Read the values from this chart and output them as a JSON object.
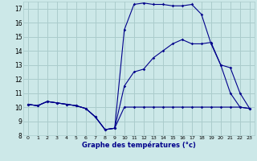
{
  "xlabel": "Graphe des températures (°c)",
  "bg_color": "#cce8e8",
  "grid_color": "#aacccc",
  "line_color": "#00008b",
  "xlim": [
    -0.5,
    23.5
  ],
  "ylim": [
    8,
    17.5
  ],
  "yticks": [
    8,
    9,
    10,
    11,
    12,
    13,
    14,
    15,
    16,
    17
  ],
  "xticks": [
    0,
    1,
    2,
    3,
    4,
    5,
    6,
    7,
    8,
    9,
    10,
    11,
    12,
    13,
    14,
    15,
    16,
    17,
    18,
    19,
    20,
    21,
    22,
    23
  ],
  "series1_x": [
    0,
    1,
    2,
    3,
    4,
    5,
    6,
    7,
    8,
    9,
    10,
    11,
    12,
    13,
    14,
    15,
    16,
    17,
    18,
    19,
    20,
    21,
    22,
    23
  ],
  "series1_y": [
    10.2,
    10.1,
    10.4,
    10.3,
    10.2,
    10.1,
    9.9,
    9.3,
    8.4,
    8.5,
    10.0,
    10.0,
    10.0,
    10.0,
    10.0,
    10.0,
    10.0,
    10.0,
    10.0,
    10.0,
    10.0,
    10.0,
    10.0,
    9.9
  ],
  "series2_x": [
    0,
    1,
    2,
    3,
    4,
    5,
    6,
    7,
    8,
    9,
    10,
    11,
    12,
    13,
    14,
    15,
    16,
    17,
    18,
    19,
    20,
    21,
    22,
    23
  ],
  "series2_y": [
    10.2,
    10.1,
    10.4,
    10.3,
    10.2,
    10.1,
    9.9,
    9.3,
    8.4,
    8.5,
    11.5,
    12.5,
    12.7,
    13.5,
    14.0,
    14.5,
    14.8,
    14.5,
    14.5,
    14.6,
    13.0,
    12.8,
    11.0,
    9.9
  ],
  "series3_x": [
    0,
    1,
    2,
    3,
    4,
    5,
    6,
    7,
    8,
    9,
    10,
    11,
    12,
    13,
    14,
    15,
    16,
    17,
    18,
    19,
    20,
    21,
    22,
    23
  ],
  "series3_y": [
    10.2,
    10.1,
    10.4,
    10.3,
    10.2,
    10.1,
    9.9,
    9.3,
    8.4,
    8.5,
    15.5,
    17.3,
    17.4,
    17.3,
    17.3,
    17.2,
    17.2,
    17.3,
    16.6,
    14.5,
    13.0,
    11.0,
    10.0,
    9.9
  ]
}
